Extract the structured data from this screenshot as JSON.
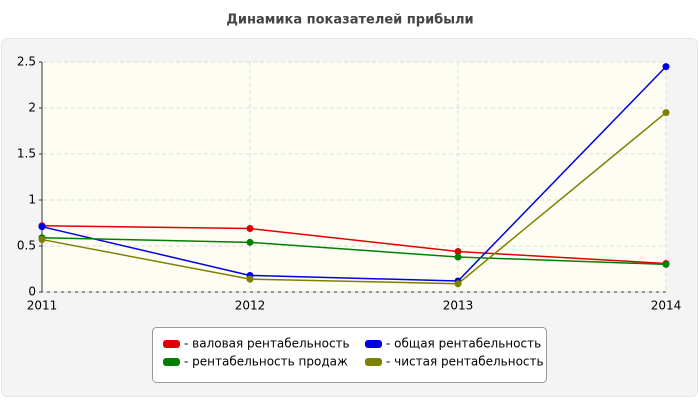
{
  "chart_data": {
    "type": "line",
    "title": "Динамика показателей прибыли",
    "categories": [
      "2011",
      "2012",
      "2013",
      "2014"
    ],
    "series": [
      {
        "name": "- валовая рентабельность",
        "color": "#e00000",
        "values": [
          0.72,
          0.69,
          0.44,
          0.31
        ]
      },
      {
        "name": "- общая рентабельность",
        "color": "#0000e0",
        "values": [
          0.71,
          0.18,
          0.12,
          2.45
        ]
      },
      {
        "name": "- рентабельность продаж",
        "color": "#008000",
        "values": [
          0.59,
          0.54,
          0.38,
          0.3
        ]
      },
      {
        "name": "- чистая рентабельность",
        "color": "#808000",
        "values": [
          0.57,
          0.14,
          0.09,
          1.95
        ]
      }
    ],
    "ylim": [
      0,
      2.5
    ],
    "yticks": [
      0,
      0.5,
      1,
      1.5,
      2,
      2.5
    ],
    "grid": true
  }
}
